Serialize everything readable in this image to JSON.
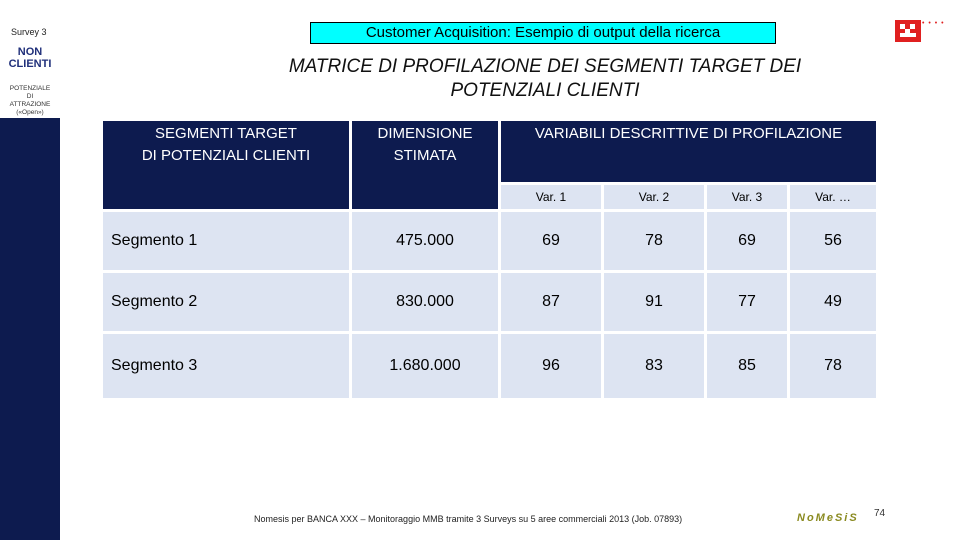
{
  "sidebar": {
    "survey": "Survey 3",
    "non_line1": "NON",
    "non_line2": "CLIENTI",
    "small1": "POTENZIALE",
    "small2": "DI",
    "small3": "ATTRAZIONE",
    "small4": "(«Open»)"
  },
  "header": {
    "title": "Customer Acquisition: Esempio di output della ricerca",
    "subtitle_line1": "MATRICE DI PROFILAZIONE DEI SEGMENTI TARGET DEI",
    "subtitle_line2": "POTENZIALI CLIENTI",
    "logo_dots": "• • • •"
  },
  "table": {
    "col1_line1": "SEGMENTI TARGET",
    "col1_line2": "DI POTENZIALI CLIENTI",
    "col2_line1": "DIMENSIONE",
    "col2_line2": "STIMATA",
    "col3": "VARIABILI DESCRITTIVE DI PROFILAZIONE",
    "vars": [
      "Var. 1",
      "Var. 2",
      "Var. 3",
      "Var. …"
    ],
    "rows": [
      {
        "segment": "Segmento 1",
        "size": "475.000",
        "v": [
          "69",
          "78",
          "69",
          "56"
        ]
      },
      {
        "segment": "Segmento 2",
        "size": "830.000",
        "v": [
          "87",
          "91",
          "77",
          "49"
        ]
      },
      {
        "segment": "Segmento 3",
        "size": "1.680.000",
        "v": [
          "96",
          "83",
          "85",
          "78"
        ]
      }
    ]
  },
  "colors": {
    "navy": "#0d1b4f",
    "cell": "#dde4f2",
    "title_bg": "#00ffff",
    "logo_red": "#e02020"
  },
  "footer": {
    "source": "Nomesis per BANCA XXX – Monitoraggio MMB tramite 3 Surveys su 5 aree commerciali 2013 (Job. 07893)",
    "logo": "NoMeSiS",
    "page": "74"
  }
}
